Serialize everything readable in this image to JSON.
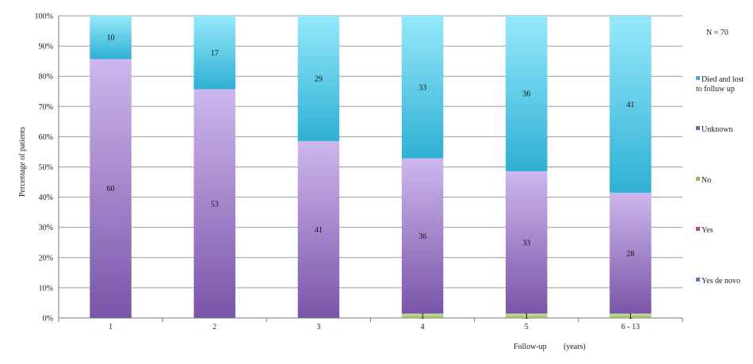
{
  "chart_data": {
    "type": "bar",
    "stacked": true,
    "percent_stacked": true,
    "note": "N = 70",
    "xlabel_parts": [
      "Follow-up",
      "(years)"
    ],
    "ylabel": "Percentage of patients",
    "categories": [
      "1",
      "2",
      "3",
      "4",
      "5",
      "6 - 13"
    ],
    "yticks": [
      "0%",
      "10%",
      "20%",
      "30%",
      "40%",
      "50%",
      "60%",
      "70%",
      "80%",
      "90%",
      "100%"
    ],
    "ylim": [
      0,
      100
    ],
    "grid": true,
    "legend_position": "right",
    "series": [
      {
        "name": "Yes de novo",
        "color": "#4f81bd",
        "values": [
          0,
          0,
          0,
          0,
          0,
          0
        ]
      },
      {
        "name": "Yes",
        "color": "#c0504d",
        "values": [
          0,
          0,
          0,
          0,
          0,
          0
        ]
      },
      {
        "name": "No",
        "color": "#9bbb59",
        "values": [
          0,
          0,
          0,
          1,
          1,
          1
        ]
      },
      {
        "name": "Unknown",
        "color": "#8064a2",
        "values": [
          60,
          53,
          41,
          36,
          33,
          28
        ]
      },
      {
        "name": "Died and lost to folluw up",
        "color": "#4bacc6",
        "values": [
          10,
          17,
          29,
          33,
          36,
          41
        ]
      }
    ],
    "legend_order": [
      "Died and lost to folluw up",
      "Unknown",
      "No",
      "Yes",
      "Yes de novo"
    ]
  }
}
